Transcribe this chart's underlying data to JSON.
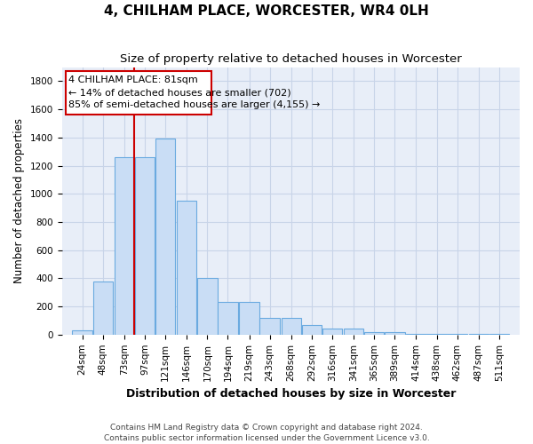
{
  "title": "4, CHILHAM PLACE, WORCESTER, WR4 0LH",
  "subtitle": "Size of property relative to detached houses in Worcester",
  "xlabel": "Distribution of detached houses by size in Worcester",
  "ylabel": "Number of detached properties",
  "categories": [
    "24sqm",
    "48sqm",
    "73sqm",
    "97sqm",
    "121sqm",
    "146sqm",
    "170sqm",
    "194sqm",
    "219sqm",
    "243sqm",
    "268sqm",
    "292sqm",
    "316sqm",
    "341sqm",
    "365sqm",
    "389sqm",
    "414sqm",
    "438sqm",
    "462sqm",
    "487sqm",
    "511sqm"
  ],
  "values": [
    30,
    380,
    1260,
    1260,
    1390,
    950,
    405,
    235,
    235,
    120,
    120,
    70,
    45,
    45,
    20,
    20,
    5,
    5,
    5,
    5,
    5
  ],
  "bar_color": "#c9ddf5",
  "bar_edge_color": "#6aaae0",
  "grid_color": "#c8d4e8",
  "background_color": "#e8eef8",
  "annotation_line1": "4 CHILHAM PLACE: 81sqm",
  "annotation_line2": "← 14% of detached houses are smaller (702)",
  "annotation_line3": "85% of semi-detached houses are larger (4,155) →",
  "annotation_box_facecolor": "#ffffff",
  "annotation_box_edgecolor": "#cc0000",
  "vline_color": "#cc0000",
  "vline_x_index": 2,
  "ylim": [
    0,
    1900
  ],
  "yticks": [
    0,
    200,
    400,
    600,
    800,
    1000,
    1200,
    1400,
    1600,
    1800
  ],
  "footer_line1": "Contains HM Land Registry data © Crown copyright and database right 2024.",
  "footer_line2": "Contains public sector information licensed under the Government Licence v3.0.",
  "title_fontsize": 11,
  "subtitle_fontsize": 9.5,
  "ylabel_fontsize": 8.5,
  "xlabel_fontsize": 9,
  "tick_fontsize": 7.5,
  "annotation_fontsize": 8,
  "footer_fontsize": 6.5
}
